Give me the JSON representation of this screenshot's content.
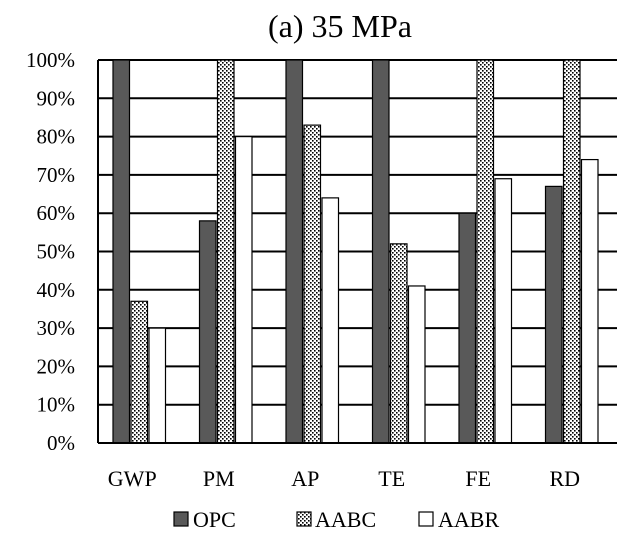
{
  "chart_data": {
    "type": "bar",
    "title": "(a) 35 MPa",
    "xlabel": "",
    "ylabel": "",
    "categories": [
      "GWP",
      "PM",
      "AP",
      "TE",
      "FE",
      "RD"
    ],
    "series": [
      {
        "name": "OPC",
        "values": [
          100,
          58,
          100,
          100,
          60,
          67
        ],
        "color": "#595959",
        "pattern": "solid"
      },
      {
        "name": "AABC",
        "values": [
          37,
          100,
          83,
          52,
          100,
          100
        ],
        "color": "#ffffff",
        "pattern": "dots"
      },
      {
        "name": "AABR",
        "values": [
          30,
          80,
          64,
          41,
          69,
          74
        ],
        "color": "#ffffff",
        "pattern": "none"
      }
    ],
    "ylim": [
      0,
      100
    ],
    "yticks": [
      "0%",
      "10%",
      "20%",
      "30%",
      "40%",
      "50%",
      "60%",
      "70%",
      "80%",
      "90%",
      "100%"
    ],
    "grid": true,
    "legend_position": "bottom"
  }
}
